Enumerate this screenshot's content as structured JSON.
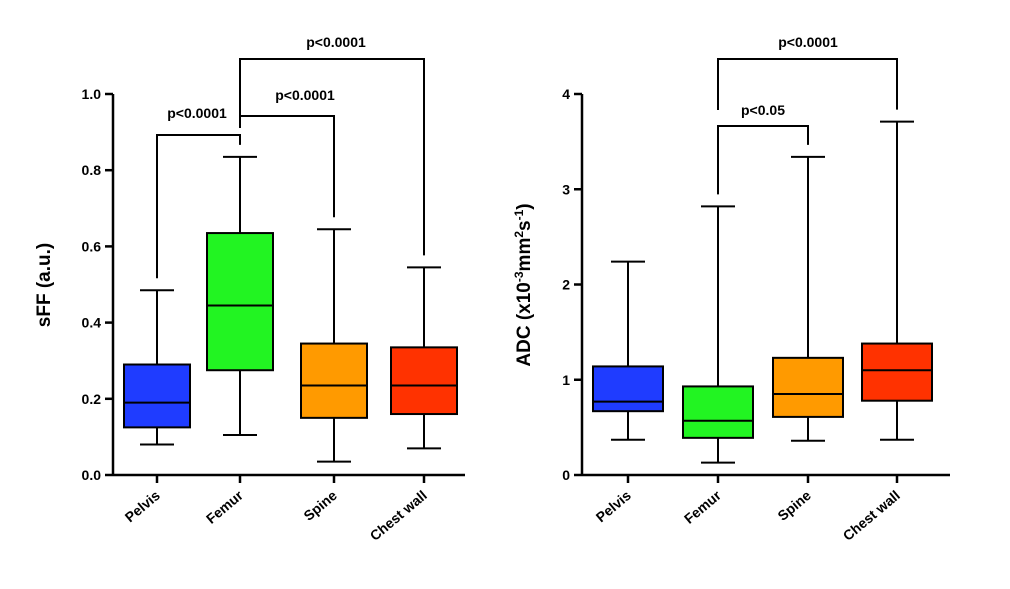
{
  "chart_data": [
    {
      "type": "boxplot",
      "ylabel": "sFF (a.u.)",
      "ylim": [
        0.0,
        1.0
      ],
      "yticks": [
        "0.0",
        "0.2",
        "0.4",
        "0.6",
        "0.8",
        "1.0"
      ],
      "ytick_values": [
        0.0,
        0.2,
        0.4,
        0.6,
        0.8,
        1.0
      ],
      "categories": [
        "Pelvis",
        "Femur",
        "Spine",
        "Chest wall"
      ],
      "colors": [
        "#1f3cff",
        "#22f422",
        "#ff9a00",
        "#ff3200"
      ],
      "boxes": [
        {
          "min": 0.08,
          "q1": 0.125,
          "median": 0.19,
          "q3": 0.29,
          "max": 0.485
        },
        {
          "min": 0.105,
          "q1": 0.275,
          "median": 0.445,
          "q3": 0.635,
          "max": 0.835
        },
        {
          "min": 0.035,
          "q1": 0.15,
          "median": 0.235,
          "q3": 0.345,
          "max": 0.645
        },
        {
          "min": 0.07,
          "q1": 0.16,
          "median": 0.235,
          "q3": 0.335,
          "max": 0.545
        }
      ],
      "comparisons": [
        {
          "from": 0,
          "to": 1,
          "label": "p<0.0001"
        },
        {
          "from": 1,
          "to": 2,
          "label": "p<0.0001"
        },
        {
          "from": 1,
          "to": 3,
          "label": "p<0.0001"
        }
      ]
    },
    {
      "type": "boxplot",
      "ylabel_main": "ADC (x10",
      "ylabel_sup1": "-3",
      "ylabel_mid": "mm",
      "ylabel_sup2": "2",
      "ylabel_s": "s",
      "ylabel_sup3": "-1",
      "ylabel_end": ")",
      "ylim": [
        0,
        4
      ],
      "yticks": [
        "0",
        "1",
        "2",
        "3",
        "4"
      ],
      "ytick_values": [
        0,
        1,
        2,
        3,
        4
      ],
      "categories": [
        "Pelvis",
        "Femur",
        "Spine",
        "Chest wall"
      ],
      "colors": [
        "#1f3cff",
        "#22f422",
        "#ff9a00",
        "#ff3200"
      ],
      "boxes": [
        {
          "min": 0.37,
          "q1": 0.67,
          "median": 0.77,
          "q3": 1.14,
          "max": 2.24
        },
        {
          "min": 0.13,
          "q1": 0.39,
          "median": 0.57,
          "q3": 0.93,
          "max": 2.82
        },
        {
          "min": 0.36,
          "q1": 0.61,
          "median": 0.85,
          "q3": 1.23,
          "max": 3.34
        },
        {
          "min": 0.37,
          "q1": 0.78,
          "median": 1.1,
          "q3": 1.38,
          "max": 3.71
        }
      ],
      "comparisons": [
        {
          "from": 1,
          "to": 2,
          "label": "p<0.05"
        },
        {
          "from": 1,
          "to": 3,
          "label": "p<0.0001"
        }
      ]
    }
  ]
}
